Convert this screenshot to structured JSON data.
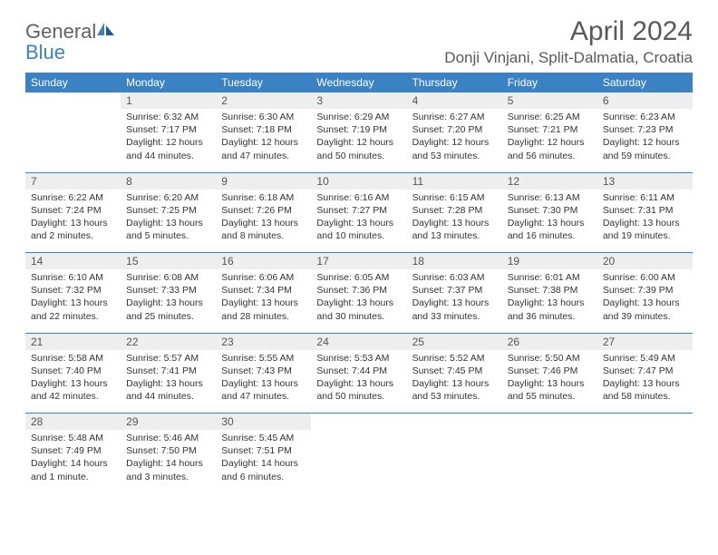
{
  "brand": {
    "part1": "General",
    "part2": "Blue"
  },
  "title": "April 2024",
  "location": "Donji Vinjani, Split-Dalmatia, Croatia",
  "colors": {
    "accent": "#3b82c4",
    "header_bg": "#eeeeee",
    "text": "#333333",
    "muted": "#595959",
    "logo_gray": "#616161",
    "background": "#ffffff"
  },
  "typography": {
    "title_fontsize": 30,
    "location_fontsize": 17,
    "weekday_fontsize": 12,
    "cell_fontsize": 10.5
  },
  "weekdays": [
    "Sunday",
    "Monday",
    "Tuesday",
    "Wednesday",
    "Thursday",
    "Friday",
    "Saturday"
  ],
  "calendar": {
    "type": "table",
    "columns": 7,
    "start_weekday": 1,
    "days": [
      {
        "n": 1,
        "sr": "6:32 AM",
        "ss": "7:17 PM",
        "dl": "12 hours and 44 minutes."
      },
      {
        "n": 2,
        "sr": "6:30 AM",
        "ss": "7:18 PM",
        "dl": "12 hours and 47 minutes."
      },
      {
        "n": 3,
        "sr": "6:29 AM",
        "ss": "7:19 PM",
        "dl": "12 hours and 50 minutes."
      },
      {
        "n": 4,
        "sr": "6:27 AM",
        "ss": "7:20 PM",
        "dl": "12 hours and 53 minutes."
      },
      {
        "n": 5,
        "sr": "6:25 AM",
        "ss": "7:21 PM",
        "dl": "12 hours and 56 minutes."
      },
      {
        "n": 6,
        "sr": "6:23 AM",
        "ss": "7:23 PM",
        "dl": "12 hours and 59 minutes."
      },
      {
        "n": 7,
        "sr": "6:22 AM",
        "ss": "7:24 PM",
        "dl": "13 hours and 2 minutes."
      },
      {
        "n": 8,
        "sr": "6:20 AM",
        "ss": "7:25 PM",
        "dl": "13 hours and 5 minutes."
      },
      {
        "n": 9,
        "sr": "6:18 AM",
        "ss": "7:26 PM",
        "dl": "13 hours and 8 minutes."
      },
      {
        "n": 10,
        "sr": "6:16 AM",
        "ss": "7:27 PM",
        "dl": "13 hours and 10 minutes."
      },
      {
        "n": 11,
        "sr": "6:15 AM",
        "ss": "7:28 PM",
        "dl": "13 hours and 13 minutes."
      },
      {
        "n": 12,
        "sr": "6:13 AM",
        "ss": "7:30 PM",
        "dl": "13 hours and 16 minutes."
      },
      {
        "n": 13,
        "sr": "6:11 AM",
        "ss": "7:31 PM",
        "dl": "13 hours and 19 minutes."
      },
      {
        "n": 14,
        "sr": "6:10 AM",
        "ss": "7:32 PM",
        "dl": "13 hours and 22 minutes."
      },
      {
        "n": 15,
        "sr": "6:08 AM",
        "ss": "7:33 PM",
        "dl": "13 hours and 25 minutes."
      },
      {
        "n": 16,
        "sr": "6:06 AM",
        "ss": "7:34 PM",
        "dl": "13 hours and 28 minutes."
      },
      {
        "n": 17,
        "sr": "6:05 AM",
        "ss": "7:36 PM",
        "dl": "13 hours and 30 minutes."
      },
      {
        "n": 18,
        "sr": "6:03 AM",
        "ss": "7:37 PM",
        "dl": "13 hours and 33 minutes."
      },
      {
        "n": 19,
        "sr": "6:01 AM",
        "ss": "7:38 PM",
        "dl": "13 hours and 36 minutes."
      },
      {
        "n": 20,
        "sr": "6:00 AM",
        "ss": "7:39 PM",
        "dl": "13 hours and 39 minutes."
      },
      {
        "n": 21,
        "sr": "5:58 AM",
        "ss": "7:40 PM",
        "dl": "13 hours and 42 minutes."
      },
      {
        "n": 22,
        "sr": "5:57 AM",
        "ss": "7:41 PM",
        "dl": "13 hours and 44 minutes."
      },
      {
        "n": 23,
        "sr": "5:55 AM",
        "ss": "7:43 PM",
        "dl": "13 hours and 47 minutes."
      },
      {
        "n": 24,
        "sr": "5:53 AM",
        "ss": "7:44 PM",
        "dl": "13 hours and 50 minutes."
      },
      {
        "n": 25,
        "sr": "5:52 AM",
        "ss": "7:45 PM",
        "dl": "13 hours and 53 minutes."
      },
      {
        "n": 26,
        "sr": "5:50 AM",
        "ss": "7:46 PM",
        "dl": "13 hours and 55 minutes."
      },
      {
        "n": 27,
        "sr": "5:49 AM",
        "ss": "7:47 PM",
        "dl": "13 hours and 58 minutes."
      },
      {
        "n": 28,
        "sr": "5:48 AM",
        "ss": "7:49 PM",
        "dl": "14 hours and 1 minute."
      },
      {
        "n": 29,
        "sr": "5:46 AM",
        "ss": "7:50 PM",
        "dl": "14 hours and 3 minutes."
      },
      {
        "n": 30,
        "sr": "5:45 AM",
        "ss": "7:51 PM",
        "dl": "14 hours and 6 minutes."
      }
    ]
  },
  "labels": {
    "sunrise": "Sunrise:",
    "sunset": "Sunset:",
    "daylight": "Daylight:"
  }
}
